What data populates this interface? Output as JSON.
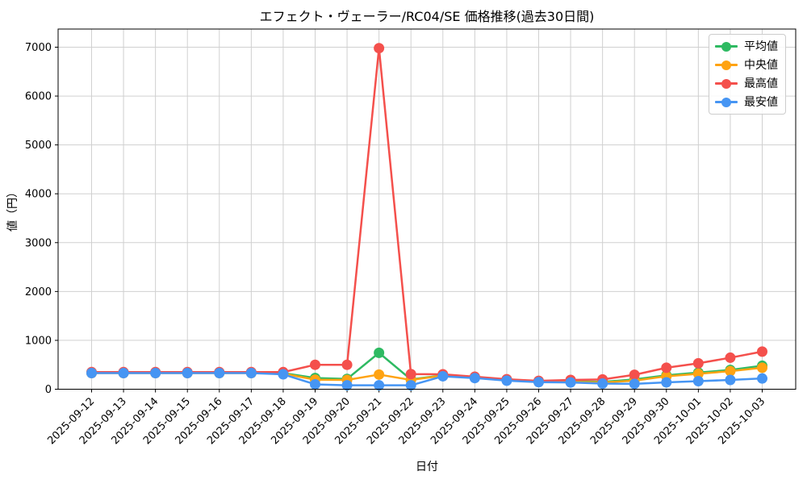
{
  "chart_data": {
    "type": "line",
    "title": "エフェクト・ヴェーラー/RC04/SE 価格推移(過去30日間)",
    "xlabel": "日付",
    "ylabel": "値（円）",
    "x": [
      "2025-09-12",
      "2025-09-13",
      "2025-09-14",
      "2025-09-15",
      "2025-09-16",
      "2025-09-17",
      "2025-09-18",
      "2025-09-19",
      "2025-09-20",
      "2025-09-21",
      "2025-09-22",
      "2025-09-23",
      "2025-09-24",
      "2025-09-25",
      "2025-09-26",
      "2025-09-27",
      "2025-09-28",
      "2025-09-29",
      "2025-09-30",
      "2025-10-01",
      "2025-10-02",
      "2025-10-03"
    ],
    "yticks": [
      0,
      1000,
      2000,
      3000,
      4000,
      5000,
      6000,
      7000
    ],
    "ylim": [
      0,
      7370
    ],
    "grid": true,
    "legend_position": "upper right",
    "background_color": "#ffffff",
    "grid_color": "#d0d0d0",
    "spine_color": "#000000",
    "series": [
      {
        "name": "平均値",
        "color": "#2eba62",
        "values": [
          340,
          340,
          340,
          340,
          340,
          340,
          330,
          230,
          210,
          745,
          200,
          285,
          245,
          195,
          160,
          160,
          150,
          200,
          285,
          340,
          395,
          480
        ]
      },
      {
        "name": "中央値",
        "color": "#ffa312",
        "values": [
          330,
          330,
          330,
          330,
          330,
          330,
          320,
          195,
          190,
          300,
          190,
          278,
          238,
          190,
          158,
          150,
          138,
          175,
          265,
          315,
          370,
          440
        ]
      },
      {
        "name": "最高値",
        "color": "#f4504c",
        "values": [
          350,
          350,
          350,
          350,
          350,
          350,
          350,
          500,
          500,
          6980,
          310,
          305,
          255,
          205,
          172,
          190,
          200,
          295,
          440,
          530,
          645,
          770
        ]
      },
      {
        "name": "最安値",
        "color": "#4695f3",
        "values": [
          330,
          330,
          330,
          330,
          330,
          330,
          305,
          100,
          80,
          80,
          80,
          265,
          228,
          175,
          145,
          138,
          115,
          110,
          140,
          165,
          190,
          220
        ]
      }
    ]
  }
}
